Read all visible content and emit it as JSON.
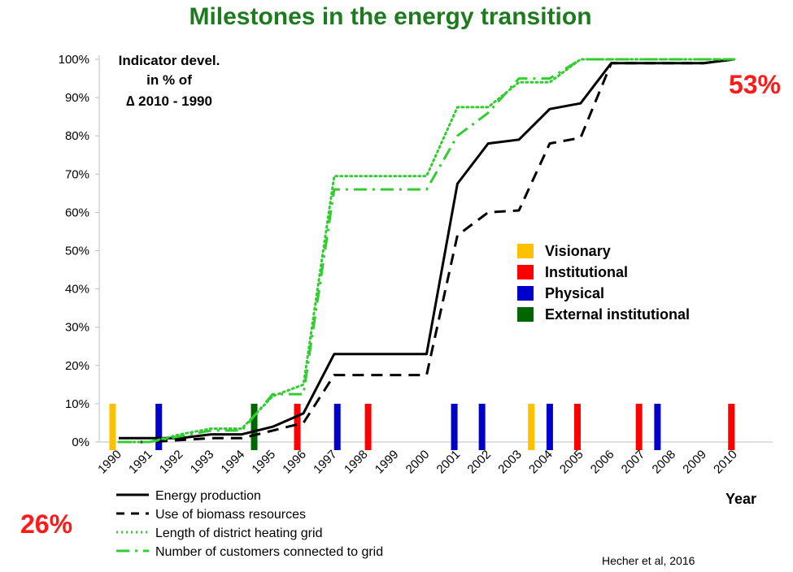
{
  "chart_data": {
    "type": "line",
    "title": "Milestones in the energy transition",
    "annotation": [
      "Indicator devel.",
      "in %  of",
      "∆ 2010 - 1990"
    ],
    "xlabel": "Year",
    "x": [
      "1990",
      "1991",
      "1992",
      "1993",
      "1994",
      "1995",
      "1996",
      "1997",
      "1998",
      "1999",
      "2000",
      "2001",
      "2002",
      "2003",
      "2004",
      "2005",
      "2006",
      "2007",
      "2008",
      "2009",
      "2010"
    ],
    "y_ticks": [
      "0%",
      "10%",
      "20%",
      "30%",
      "40%",
      "50%",
      "60%",
      "70%",
      "80%",
      "90%",
      "100%"
    ],
    "ylim": [
      0,
      100
    ],
    "series": [
      {
        "name": "Energy production",
        "style": "solid",
        "color": "#000000",
        "points": [
          [
            1990,
            1
          ],
          [
            1991,
            1
          ],
          [
            1992,
            1
          ],
          [
            1993,
            2
          ],
          [
            1994,
            2
          ],
          [
            1995,
            4
          ],
          [
            1996,
            7.5
          ],
          [
            1997,
            23
          ],
          [
            1998,
            23
          ],
          [
            1999,
            23
          ],
          [
            2000,
            23
          ],
          [
            2001,
            67.5
          ],
          [
            2002,
            78
          ],
          [
            2003,
            79
          ],
          [
            2004,
            87
          ],
          [
            2005,
            88.5
          ],
          [
            2006,
            99
          ],
          [
            2007,
            99
          ],
          [
            2008,
            99
          ],
          [
            2009,
            99
          ],
          [
            2010,
            100
          ]
        ]
      },
      {
        "name": "Use of biomass resources",
        "style": "dashed",
        "color": "#000000",
        "points": [
          [
            1990,
            0
          ],
          [
            1991,
            0
          ],
          [
            1992,
            0.5
          ],
          [
            1993,
            1
          ],
          [
            1994,
            1
          ],
          [
            1995,
            3
          ],
          [
            1996,
            5
          ],
          [
            1997,
            17.5
          ],
          [
            1998,
            17.5
          ],
          [
            1999,
            17.5
          ],
          [
            2000,
            17.5
          ],
          [
            2001,
            54
          ],
          [
            2002,
            60
          ],
          [
            2003,
            60.5
          ],
          [
            2004,
            78
          ],
          [
            2005,
            79.5
          ],
          [
            2006,
            99
          ],
          [
            2007,
            99
          ],
          [
            2008,
            99
          ],
          [
            2009,
            99
          ],
          [
            2010,
            100
          ]
        ]
      },
      {
        "name": "Length of district heating grid",
        "style": "dotted",
        "color": "#33cc33",
        "points": [
          [
            1990,
            0
          ],
          [
            1991,
            0
          ],
          [
            1992,
            2
          ],
          [
            1993,
            3.5
          ],
          [
            1994,
            3.5
          ],
          [
            1995,
            12
          ],
          [
            1996,
            15
          ],
          [
            1997,
            69.5
          ],
          [
            1998,
            69.5
          ],
          [
            1999,
            69.5
          ],
          [
            2000,
            69.5
          ],
          [
            2001,
            87.5
          ],
          [
            2002,
            87.5
          ],
          [
            2003,
            94
          ],
          [
            2004,
            94
          ],
          [
            2005,
            100
          ],
          [
            2006,
            100
          ],
          [
            2007,
            100
          ],
          [
            2008,
            100
          ],
          [
            2009,
            100
          ],
          [
            2010,
            100
          ]
        ]
      },
      {
        "name": "Number of customers connected  to grid",
        "style": "dashdot",
        "color": "#33cc33",
        "points": [
          [
            1990,
            0
          ],
          [
            1991,
            0
          ],
          [
            1992,
            1.5
          ],
          [
            1993,
            3
          ],
          [
            1994,
            3
          ],
          [
            1995,
            12.5
          ],
          [
            1996,
            12.5
          ],
          [
            1997,
            66
          ],
          [
            1998,
            66
          ],
          [
            1999,
            66
          ],
          [
            2000,
            66
          ],
          [
            2001,
            80
          ],
          [
            2002,
            86
          ],
          [
            2003,
            95
          ],
          [
            2004,
            95
          ],
          [
            2005,
            100
          ],
          [
            2006,
            100
          ],
          [
            2007,
            100
          ],
          [
            2008,
            100
          ],
          [
            2009,
            100
          ],
          [
            2010,
            100
          ]
        ]
      }
    ],
    "milestone_categories": [
      {
        "name": "Visionary",
        "color": "#ffc000"
      },
      {
        "name": "Institutional",
        "color": "#ff0000"
      },
      {
        "name": "Physical",
        "color": "#0000cc"
      },
      {
        "name": "External institutional",
        "color": "#006600"
      }
    ],
    "milestones": [
      {
        "year": 1989.8,
        "category": "Visionary"
      },
      {
        "year": 1991.3,
        "category": "Physical"
      },
      {
        "year": 1994.4,
        "category": "External institutional"
      },
      {
        "year": 1995.8,
        "category": "Institutional"
      },
      {
        "year": 1997.1,
        "category": "Physical"
      },
      {
        "year": 1998.1,
        "category": "Institutional"
      },
      {
        "year": 2000.9,
        "category": "Physical"
      },
      {
        "year": 2001.8,
        "category": "Physical"
      },
      {
        "year": 2003.4,
        "category": "Visionary"
      },
      {
        "year": 2004.0,
        "category": "Physical"
      },
      {
        "year": 2004.9,
        "category": "Institutional"
      },
      {
        "year": 2006.9,
        "category": "Institutional"
      },
      {
        "year": 2007.5,
        "category": "Physical"
      },
      {
        "year": 2009.9,
        "category": "Institutional"
      }
    ],
    "left_percentage": "26%",
    "right_percentage": "53%",
    "credit": "Hecher et al, 2016"
  }
}
